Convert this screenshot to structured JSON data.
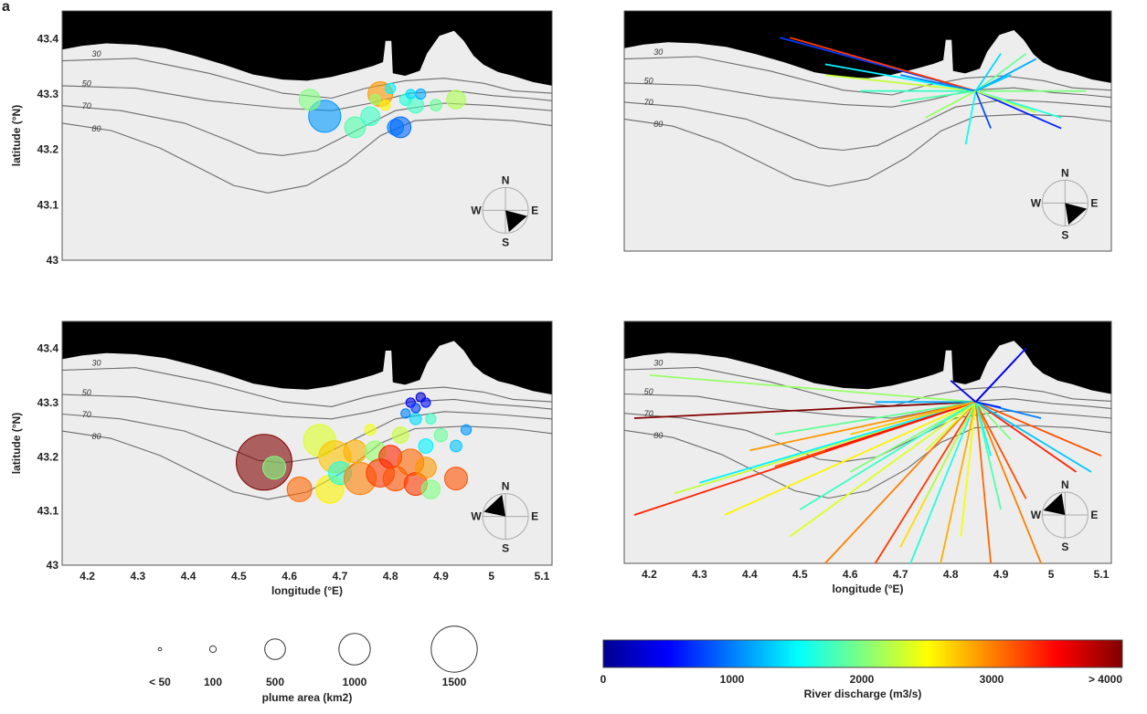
{
  "figure": {
    "panel_letter": "a",
    "compass": {
      "n": "N",
      "s": "S",
      "e": "E",
      "w": "W"
    },
    "ticks": {
      "lat": [
        "43.4",
        "43.3",
        "43.2",
        "43.1",
        "43"
      ],
      "lon": [
        "4.2",
        "4.3",
        "4.4",
        "4.5",
        "4.6",
        "4.7",
        "4.8",
        "4.9",
        "5",
        "5.1"
      ]
    },
    "contour_labels": [
      "30",
      "50",
      "70",
      "80"
    ],
    "axis_labels": {
      "ylabel": "latitude (°N)",
      "xlabel": "longitude (°E)"
    },
    "size_legend": {
      "title": "plume area (km2)",
      "labels": [
        "< 50",
        "100",
        "500",
        "1000",
        "1500"
      ]
    },
    "colorbar": {
      "title": "River discharge (m3/s)",
      "labels": [
        "0",
        "1000",
        "2000",
        "3000",
        "> 4000"
      ]
    }
  },
  "chart_data": [
    {
      "type": "scatter",
      "panel": "top-left",
      "xlabel": "",
      "ylabel": "latitude (°N)",
      "xlim": [
        4.15,
        5.12
      ],
      "ylim": [
        43.0,
        43.45
      ],
      "size_variable": "plume area (km2)",
      "color_variable": "River discharge (m3/s)",
      "compass_wedge_direction": "SE",
      "points": [
        {
          "lon": 4.67,
          "lat": 43.26,
          "area": 600,
          "q": 1200
        },
        {
          "lon": 4.64,
          "lat": 43.29,
          "area": 250,
          "q": 2200
        },
        {
          "lon": 4.73,
          "lat": 43.24,
          "area": 250,
          "q": 2000
        },
        {
          "lon": 4.76,
          "lat": 43.26,
          "area": 200,
          "q": 1900
        },
        {
          "lon": 4.78,
          "lat": 43.3,
          "area": 350,
          "q": 3200
        },
        {
          "lon": 4.81,
          "lat": 43.24,
          "area": 150,
          "q": 1100
        },
        {
          "lon": 4.82,
          "lat": 43.24,
          "area": 250,
          "q": 1000
        },
        {
          "lon": 4.83,
          "lat": 43.29,
          "area": 80,
          "q": 1800
        },
        {
          "lon": 4.85,
          "lat": 43.28,
          "area": 150,
          "q": 1900
        },
        {
          "lon": 4.86,
          "lat": 43.3,
          "area": 60,
          "q": 1300
        },
        {
          "lon": 4.8,
          "lat": 43.31,
          "area": 60,
          "q": 1600
        },
        {
          "lon": 4.89,
          "lat": 43.28,
          "area": 80,
          "q": 2100
        },
        {
          "lon": 4.93,
          "lat": 43.29,
          "area": 200,
          "q": 2400
        },
        {
          "lon": 4.79,
          "lat": 43.28,
          "area": 60,
          "q": 2800
        },
        {
          "lon": 4.84,
          "lat": 43.3,
          "area": 50,
          "q": 1500
        },
        {
          "lon": 4.77,
          "lat": 43.29,
          "area": 60,
          "q": 2300
        }
      ]
    },
    {
      "type": "line",
      "panel": "top-right",
      "xlabel": "",
      "ylabel": "",
      "xlim": [
        4.15,
        5.12
      ],
      "ylim": [
        43.0,
        43.45
      ],
      "color_variable": "River discharge (m3/s)",
      "compass_wedge_direction": "SE",
      "trajectories": [
        {
          "from": [
            4.85,
            43.3
          ],
          "to": [
            4.46,
            43.4
          ],
          "q": 800
        },
        {
          "from": [
            4.85,
            43.3
          ],
          "to": [
            4.48,
            43.4
          ],
          "q": 3600
        },
        {
          "from": [
            4.85,
            43.3
          ],
          "to": [
            4.55,
            43.35
          ],
          "q": 1600
        },
        {
          "from": [
            4.85,
            43.3
          ],
          "to": [
            4.55,
            43.33
          ],
          "q": 2500
        },
        {
          "from": [
            4.85,
            43.3
          ],
          "to": [
            4.62,
            43.3
          ],
          "q": 1900
        },
        {
          "from": [
            4.85,
            43.3
          ],
          "to": [
            4.7,
            43.28
          ],
          "q": 2000
        },
        {
          "from": [
            4.85,
            43.3
          ],
          "to": [
            4.7,
            43.33
          ],
          "q": 1100
        },
        {
          "from": [
            4.85,
            43.3
          ],
          "to": [
            4.9,
            43.37
          ],
          "q": 1500
        },
        {
          "from": [
            4.85,
            43.3
          ],
          "to": [
            4.95,
            43.37
          ],
          "q": 2100
        },
        {
          "from": [
            4.85,
            43.3
          ],
          "to": [
            4.97,
            43.36
          ],
          "q": 1300
        },
        {
          "from": [
            4.85,
            43.3
          ],
          "to": [
            5.07,
            43.3
          ],
          "q": 2200
        },
        {
          "from": [
            4.85,
            43.3
          ],
          "to": [
            5.02,
            43.25
          ],
          "q": 1800
        },
        {
          "from": [
            4.85,
            43.3
          ],
          "to": [
            5.02,
            43.23
          ],
          "q": 700
        },
        {
          "from": [
            4.85,
            43.3
          ],
          "to": [
            4.97,
            43.26
          ],
          "q": 2400
        },
        {
          "from": [
            4.85,
            43.3
          ],
          "to": [
            4.83,
            43.2
          ],
          "q": 1700
        },
        {
          "from": [
            4.85,
            43.3
          ],
          "to": [
            4.88,
            43.23
          ],
          "q": 900
        },
        {
          "from": [
            4.85,
            43.3
          ],
          "to": [
            4.75,
            43.25
          ],
          "q": 2300
        },
        {
          "from": [
            4.85,
            43.3
          ],
          "to": [
            4.92,
            43.33
          ],
          "q": 1400
        }
      ]
    },
    {
      "type": "scatter",
      "panel": "bottom-left",
      "xlabel": "longitude (°E)",
      "ylabel": "latitude (°N)",
      "xlim": [
        4.15,
        5.12
      ],
      "ylim": [
        43.0,
        43.45
      ],
      "size_variable": "plume area (km2)",
      "color_variable": "River discharge (m3/s)",
      "compass_wedge_direction": "NW",
      "points": [
        {
          "lon": 4.55,
          "lat": 43.19,
          "area": 1800,
          "q": 4400
        },
        {
          "lon": 4.57,
          "lat": 43.18,
          "area": 300,
          "q": 2200
        },
        {
          "lon": 4.62,
          "lat": 43.14,
          "area": 350,
          "q": 3400
        },
        {
          "lon": 4.66,
          "lat": 43.23,
          "area": 600,
          "q": 2600
        },
        {
          "lon": 4.69,
          "lat": 43.2,
          "area": 600,
          "q": 3000
        },
        {
          "lon": 4.68,
          "lat": 43.14,
          "area": 450,
          "q": 2800
        },
        {
          "lon": 4.7,
          "lat": 43.17,
          "area": 300,
          "q": 1800
        },
        {
          "lon": 4.74,
          "lat": 43.16,
          "area": 600,
          "q": 3300
        },
        {
          "lon": 4.73,
          "lat": 43.21,
          "area": 300,
          "q": 3100
        },
        {
          "lon": 4.77,
          "lat": 43.21,
          "area": 250,
          "q": 2300
        },
        {
          "lon": 4.78,
          "lat": 43.17,
          "area": 450,
          "q": 3600
        },
        {
          "lon": 4.8,
          "lat": 43.2,
          "area": 300,
          "q": 3700
        },
        {
          "lon": 4.81,
          "lat": 43.16,
          "area": 350,
          "q": 3500
        },
        {
          "lon": 4.84,
          "lat": 43.19,
          "area": 400,
          "q": 3400
        },
        {
          "lon": 4.85,
          "lat": 43.15,
          "area": 300,
          "q": 3600
        },
        {
          "lon": 4.87,
          "lat": 43.18,
          "area": 250,
          "q": 3200
        },
        {
          "lon": 4.88,
          "lat": 43.14,
          "area": 200,
          "q": 2200
        },
        {
          "lon": 4.93,
          "lat": 43.16,
          "area": 300,
          "q": 3500
        },
        {
          "lon": 4.82,
          "lat": 43.24,
          "area": 150,
          "q": 2500
        },
        {
          "lon": 4.87,
          "lat": 43.22,
          "area": 120,
          "q": 1600
        },
        {
          "lon": 4.9,
          "lat": 43.24,
          "area": 100,
          "q": 2100
        },
        {
          "lon": 4.93,
          "lat": 43.22,
          "area": 80,
          "q": 1400
        },
        {
          "lon": 4.95,
          "lat": 43.25,
          "area": 60,
          "q": 1200
        },
        {
          "lon": 4.85,
          "lat": 43.27,
          "area": 80,
          "q": 1500
        },
        {
          "lon": 4.88,
          "lat": 43.27,
          "area": 60,
          "q": 1900
        },
        {
          "lon": 4.84,
          "lat": 43.3,
          "area": 50,
          "q": 500
        },
        {
          "lon": 4.86,
          "lat": 43.31,
          "area": 50,
          "q": 300
        },
        {
          "lon": 4.85,
          "lat": 43.29,
          "area": 50,
          "q": 800
        },
        {
          "lon": 4.87,
          "lat": 43.3,
          "area": 50,
          "q": 600
        },
        {
          "lon": 4.83,
          "lat": 43.28,
          "area": 50,
          "q": 1100
        },
        {
          "lon": 4.76,
          "lat": 43.25,
          "area": 70,
          "q": 2700
        }
      ]
    },
    {
      "type": "line",
      "panel": "bottom-right",
      "xlabel": "longitude (°E)",
      "ylabel": "",
      "xlim": [
        4.15,
        5.12
      ],
      "ylim": [
        43.0,
        43.45
      ],
      "color_variable": "River discharge (m3/s)",
      "compass_wedge_direction": "NW",
      "trajectories": [
        {
          "from": [
            4.85,
            43.3
          ],
          "to": [
            4.17,
            43.27
          ],
          "q": 4400
        },
        {
          "from": [
            4.85,
            43.3
          ],
          "to": [
            4.17,
            43.09
          ],
          "q": 3700
        },
        {
          "from": [
            4.85,
            43.3
          ],
          "to": [
            4.2,
            43.35
          ],
          "q": 2300
        },
        {
          "from": [
            4.85,
            43.3
          ],
          "to": [
            4.25,
            43.13
          ],
          "q": 2500
        },
        {
          "from": [
            4.85,
            43.3
          ],
          "to": [
            4.3,
            43.15
          ],
          "q": 1600
        },
        {
          "from": [
            4.85,
            43.3
          ],
          "to": [
            4.35,
            43.09
          ],
          "q": 2800
        },
        {
          "from": [
            4.85,
            43.3
          ],
          "to": [
            4.45,
            43.18
          ],
          "q": 3500
        },
        {
          "from": [
            4.85,
            43.3
          ],
          "to": [
            4.48,
            43.05
          ],
          "q": 2600
        },
        {
          "from": [
            4.85,
            43.3
          ],
          "to": [
            4.55,
            43.0
          ],
          "q": 3300
        },
        {
          "from": [
            4.85,
            43.3
          ],
          "to": [
            4.55,
            43.21
          ],
          "q": 3800
        },
        {
          "from": [
            4.85,
            43.3
          ],
          "to": [
            4.6,
            43.17
          ],
          "q": 2200
        },
        {
          "from": [
            4.85,
            43.3
          ],
          "to": [
            4.65,
            43.0
          ],
          "q": 3600
        },
        {
          "from": [
            4.85,
            43.3
          ],
          "to": [
            4.7,
            43.03
          ],
          "q": 2900
        },
        {
          "from": [
            4.85,
            43.3
          ],
          "to": [
            4.72,
            43.0
          ],
          "q": 1800
        },
        {
          "from": [
            4.85,
            43.3
          ],
          "to": [
            4.75,
            43.12
          ],
          "q": 2400
        },
        {
          "from": [
            4.85,
            43.3
          ],
          "to": [
            4.78,
            43.0
          ],
          "q": 3100
        },
        {
          "from": [
            4.85,
            43.3
          ],
          "to": [
            4.82,
            43.05
          ],
          "q": 2700
        },
        {
          "from": [
            4.85,
            43.3
          ],
          "to": [
            4.88,
            43.0
          ],
          "q": 3400
        },
        {
          "from": [
            4.85,
            43.3
          ],
          "to": [
            4.9,
            43.1
          ],
          "q": 2000
        },
        {
          "from": [
            4.85,
            43.3
          ],
          "to": [
            4.95,
            43.12
          ],
          "q": 3500
        },
        {
          "from": [
            4.85,
            43.3
          ],
          "to": [
            4.98,
            43.0
          ],
          "q": 3300
        },
        {
          "from": [
            4.85,
            43.3
          ],
          "to": [
            5.05,
            43.17
          ],
          "q": 3700
        },
        {
          "from": [
            4.85,
            43.3
          ],
          "to": [
            5.1,
            43.2
          ],
          "q": 3500
        },
        {
          "from": [
            4.85,
            43.3
          ],
          "to": [
            5.08,
            43.17
          ],
          "q": 1400
        },
        {
          "from": [
            4.85,
            43.3
          ],
          "to": [
            4.93,
            43.38
          ],
          "q": 300
        },
        {
          "from": [
            4.85,
            43.3
          ],
          "to": [
            4.95,
            43.4
          ],
          "q": 500
        },
        {
          "from": [
            4.85,
            43.3
          ],
          "to": [
            4.65,
            43.3
          ],
          "q": 1300
        },
        {
          "from": [
            4.85,
            43.3
          ],
          "to": [
            4.7,
            43.27
          ],
          "q": 600
        },
        {
          "from": [
            4.85,
            43.3
          ],
          "to": [
            4.98,
            43.27
          ],
          "q": 1100
        },
        {
          "from": [
            4.85,
            43.3
          ],
          "to": [
            4.75,
            43.21
          ],
          "q": 2600
        },
        {
          "from": [
            4.85,
            43.3
          ],
          "to": [
            4.6,
            43.24
          ],
          "q": 3000
        },
        {
          "from": [
            4.85,
            43.3
          ],
          "to": [
            4.45,
            43.24
          ],
          "q": 2100
        },
        {
          "from": [
            4.85,
            43.3
          ],
          "to": [
            4.5,
            43.1
          ],
          "q": 1900
        },
        {
          "from": [
            4.85,
            43.3
          ],
          "to": [
            4.4,
            43.21
          ],
          "q": 3200
        },
        {
          "from": [
            4.85,
            43.3
          ],
          "to": [
            4.88,
            43.2
          ],
          "q": 1700
        },
        {
          "from": [
            4.85,
            43.3
          ],
          "to": [
            4.92,
            43.23
          ],
          "q": 2200
        },
        {
          "from": [
            4.85,
            43.3
          ],
          "to": [
            4.8,
            43.34
          ],
          "q": 400
        },
        {
          "from": [
            4.85,
            43.3
          ],
          "to": [
            4.9,
            43.29
          ],
          "q": 700
        }
      ]
    }
  ]
}
